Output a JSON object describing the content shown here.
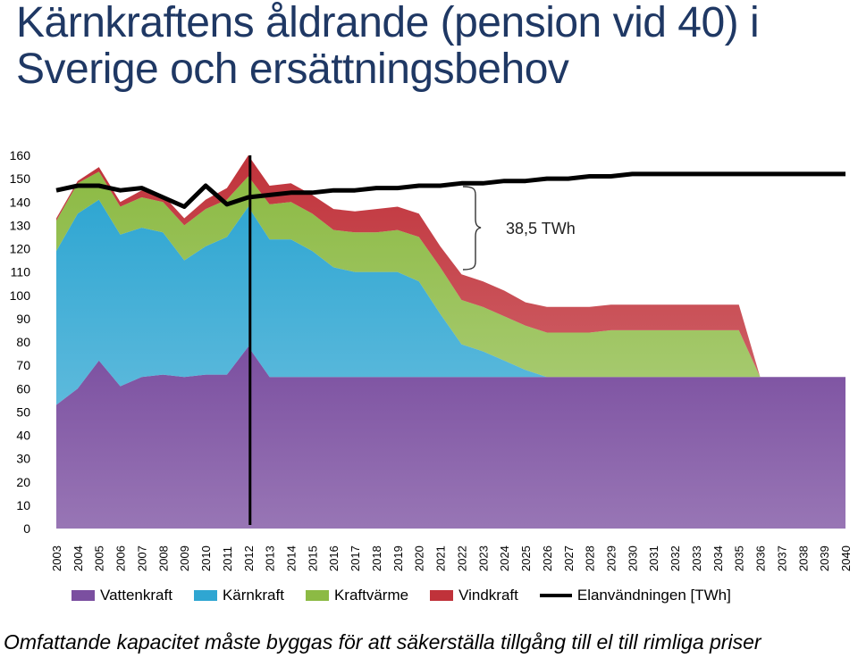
{
  "chart_data": {
    "type": "area",
    "title": "Kärnkraftens åldrande (pension vid 40) i Sverige och ersättningsbehov",
    "ylim": [
      0,
      160
    ],
    "yticks": [
      0,
      10,
      20,
      30,
      40,
      50,
      60,
      70,
      80,
      90,
      100,
      110,
      120,
      130,
      140,
      150,
      160
    ],
    "categories": [
      "2003",
      "2004",
      "2005",
      "2006",
      "2007",
      "2008",
      "2009",
      "2010",
      "2011",
      "2012",
      "2013",
      "2014",
      "2015",
      "2016",
      "2017",
      "2018",
      "2019",
      "2020",
      "2021",
      "2022",
      "2023",
      "2024",
      "2025",
      "2026",
      "2027",
      "2028",
      "2029",
      "2030",
      "2031",
      "2032",
      "2033",
      "2034",
      "2035",
      "2036",
      "2037",
      "2038",
      "2039",
      "2040"
    ],
    "stacked": true,
    "series": [
      {
        "name": "Vattenkraft",
        "kind": "area",
        "color": "#7b4fa0",
        "values": [
          53,
          60,
          72,
          61,
          65,
          66,
          65,
          66,
          66,
          78,
          65,
          65,
          65,
          65,
          65,
          65,
          65,
          65,
          65,
          65,
          65,
          65,
          65,
          65,
          65,
          65,
          65,
          65,
          65,
          65,
          65,
          65,
          65,
          65,
          65,
          65,
          65,
          65
        ]
      },
      {
        "name": "Kärnkraft",
        "kind": "area",
        "color": "#2fa6d2",
        "values": [
          66,
          75,
          69,
          65,
          64,
          61,
          50,
          55,
          59,
          60,
          59,
          59,
          54,
          47,
          45,
          45,
          45,
          41,
          27,
          14,
          11,
          7,
          3,
          0,
          0,
          0,
          0,
          0,
          0,
          0,
          0,
          0,
          0,
          0,
          0,
          0,
          0,
          0
        ]
      },
      {
        "name": "Kraftvärme",
        "kind": "area",
        "color": "#8cba44",
        "values": [
          13,
          13,
          12,
          12,
          13,
          13,
          15,
          16,
          16,
          13,
          15,
          16,
          16,
          16,
          17,
          17,
          18,
          19,
          20,
          19,
          19,
          19,
          19,
          19,
          19,
          19,
          20,
          20,
          20,
          20,
          20,
          20,
          20,
          0,
          0,
          0,
          0,
          0
        ]
      },
      {
        "name": "Vindkraft",
        "kind": "area",
        "color": "#c0323a",
        "values": [
          1,
          1,
          2,
          2,
          3,
          3,
          3,
          4,
          5,
          9,
          8,
          8,
          8,
          9,
          9,
          10,
          10,
          10,
          9,
          11,
          11,
          11,
          10,
          11,
          11,
          11,
          11,
          11,
          11,
          11,
          11,
          11,
          11,
          0,
          0,
          0,
          0,
          0
        ]
      },
      {
        "name": "Elanvändningen [TWh]",
        "kind": "line",
        "color": "#000000",
        "values": [
          145,
          147,
          147,
          145,
          146,
          142,
          138,
          147,
          139,
          142,
          143,
          144,
          144,
          145,
          145,
          146,
          146,
          147,
          147,
          148,
          148,
          149,
          149,
          150,
          150,
          151,
          151,
          152,
          152,
          152,
          152,
          152,
          152,
          152,
          152,
          152,
          152,
          152
        ]
      }
    ],
    "marker_year": "2012",
    "annotation": "38,5 TWh",
    "grid": false,
    "legend_position": "bottom"
  },
  "footnote": "Omfattande kapacitet måste byggas för att säkerställa tillgång till el till rimliga priser"
}
